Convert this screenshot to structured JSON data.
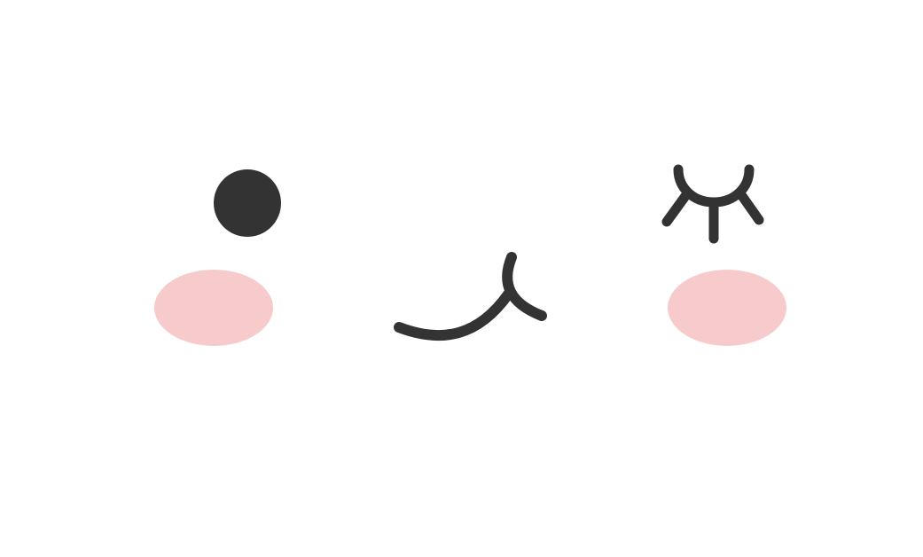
{
  "face": {
    "ink_color": "#333333",
    "blush_color": "#f7cbcb",
    "background_color": "#ffffff",
    "left_eye": "open-dot-eye",
    "right_eye": "closed-lashed-eye",
    "mouth": "smirk-mouth",
    "cheeks": [
      "left-blush",
      "right-blush"
    ]
  }
}
